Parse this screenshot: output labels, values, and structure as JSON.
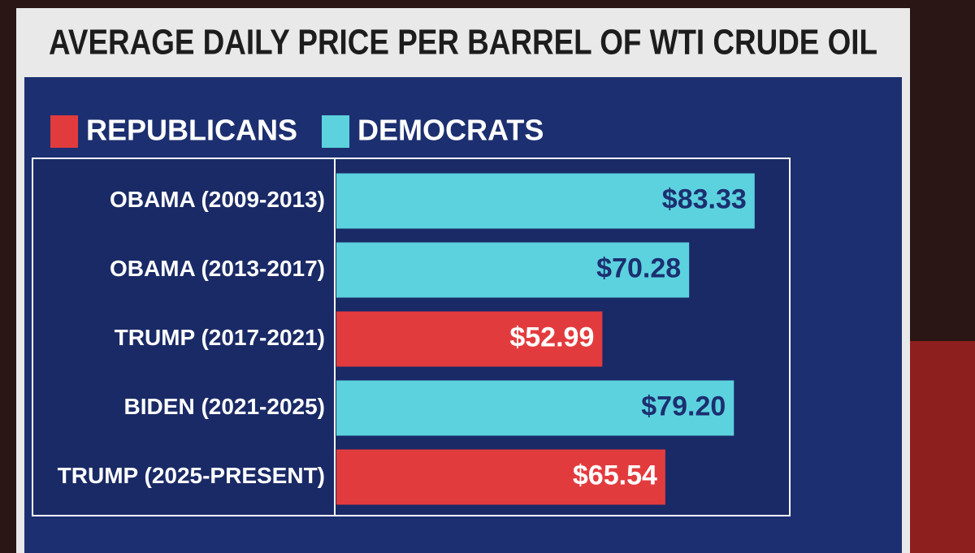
{
  "chart_data": {
    "type": "hbar",
    "title": "AVERAGE DAILY PRICE PER BARREL OF WTI CRUDE OIL",
    "categories": [
      "OBAMA (2009-2013)",
      "OBAMA (2013-2017)",
      "TRUMP (2017-2021)",
      "BIDEN (2021-2025)",
      "TRUMP (2025-PRESENT)"
    ],
    "series": [
      {
        "name": "REPUBLICANS",
        "color": "#e23b3e",
        "values": [
          null,
          null,
          52.99,
          null,
          65.54
        ],
        "value_labels": [
          null,
          null,
          "$52.99",
          null,
          "$65.54"
        ]
      },
      {
        "name": "DEMOCRATS",
        "color": "#5cd2df",
        "values": [
          83.33,
          70.28,
          null,
          79.2,
          null
        ],
        "value_labels": [
          "$83.33",
          "$70.28",
          null,
          "$79.20",
          null
        ]
      }
    ],
    "xlim": [
      0,
      90
    ]
  }
}
